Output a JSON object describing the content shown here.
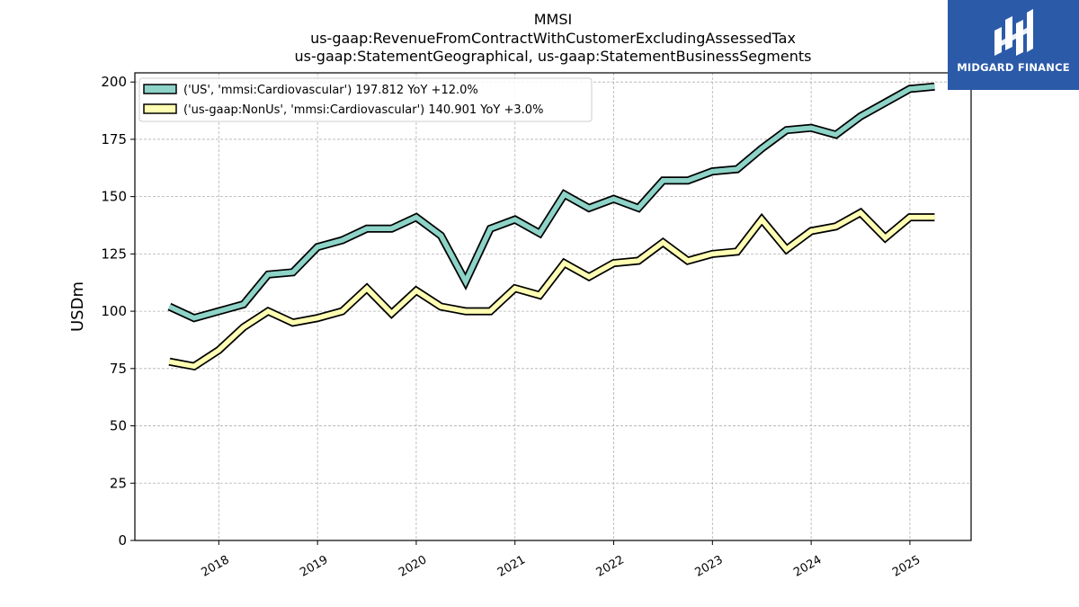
{
  "chart_data": {
    "type": "line",
    "title": "MMSI",
    "subtitle_lines": [
      "us-gaap:RevenueFromContractWithCustomerExcludingAssessedTax",
      "us-gaap:StatementGeographical, us-gaap:StatementBusinessSegments"
    ],
    "ylabel": "USDm",
    "ylim": [
      0,
      204
    ],
    "yticks": [
      0,
      25,
      50,
      75,
      100,
      125,
      150,
      175,
      200
    ],
    "xlim": [
      2017.15,
      2025.62
    ],
    "xticks": [
      2018,
      2019,
      2020,
      2021,
      2022,
      2023,
      2024,
      2025
    ],
    "xtick_labels": [
      "2018",
      "2019",
      "2020",
      "2021",
      "2022",
      "2023",
      "2024",
      "2025"
    ],
    "grid": true,
    "legend_position": "top-left",
    "x": [
      2017.5,
      2017.75,
      2018.0,
      2018.25,
      2018.5,
      2018.75,
      2019.0,
      2019.25,
      2019.5,
      2019.75,
      2020.0,
      2020.25,
      2020.5,
      2020.75,
      2021.0,
      2021.25,
      2021.5,
      2021.75,
      2022.0,
      2022.25,
      2022.5,
      2022.75,
      2023.0,
      2023.25,
      2023.5,
      2023.75,
      2024.0,
      2024.25,
      2024.5,
      2024.75,
      2025.0,
      2025.25
    ],
    "series": [
      {
        "name": "('US', 'mmsi:Cardiovascular') 197.812 YoY +12.0%",
        "color": "#8dd3c7",
        "values": [
          102,
          97,
          100,
          103,
          116,
          117,
          128,
          131,
          136,
          136,
          141,
          133,
          113,
          136,
          140,
          134,
          151,
          145,
          149,
          145,
          157,
          157,
          161,
          162,
          171,
          179,
          180,
          177,
          185,
          191,
          197,
          198
        ]
      },
      {
        "name": "('us-gaap:NonUs', 'mmsi:Cardiovascular') 140.901 YoY +3.0%",
        "color": "#ffffb3",
        "values": [
          78,
          76,
          83,
          93,
          100,
          95,
          97,
          100,
          110,
          99,
          109,
          102,
          100,
          100,
          110,
          107,
          121,
          115,
          121,
          122,
          130,
          122,
          125,
          126,
          140,
          127,
          135,
          137,
          143,
          132,
          141,
          141
        ]
      }
    ]
  },
  "logo": {
    "text": "MIDGARD FINANCE",
    "color": "#2b5aa8"
  }
}
